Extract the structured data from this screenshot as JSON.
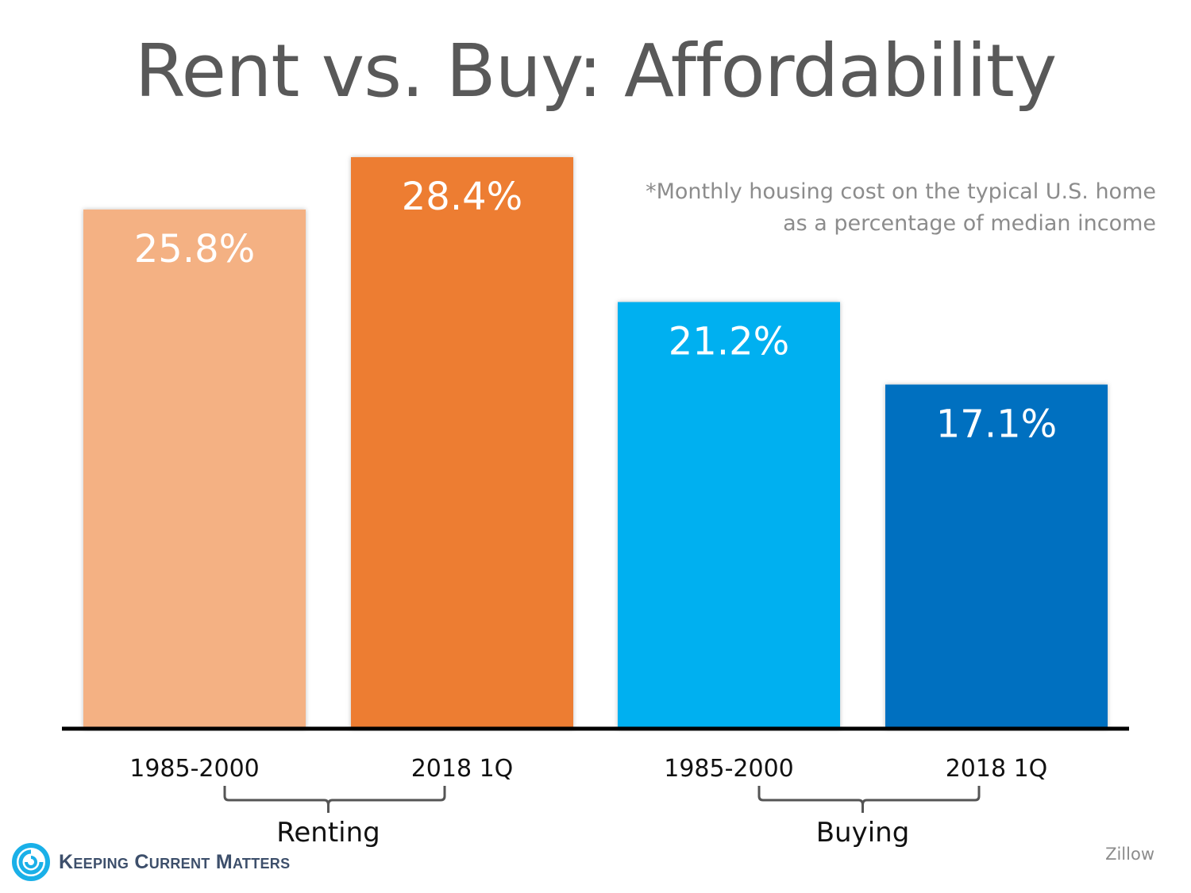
{
  "title": "Rent vs. Buy: Affordability",
  "note_lines": [
    "*Monthly housing cost on the typical U.S. home",
    "as a percentage of median income"
  ],
  "source": "Zillow",
  "logo": {
    "text": "Keeping Current Matters",
    "icon": "swirl-logo-icon",
    "color": "#1ab0e8"
  },
  "chart_data": {
    "type": "bar",
    "title": "Rent vs. Buy: Affordability",
    "categories": [
      "1985-2000",
      "2018 1Q",
      "1985-2000",
      "2018 1Q"
    ],
    "groups": [
      {
        "label": "Renting",
        "indices": [
          0,
          1
        ]
      },
      {
        "label": "Buying",
        "indices": [
          2,
          3
        ]
      }
    ],
    "values": [
      25.8,
      28.4,
      21.2,
      17.1
    ],
    "data_labels": [
      "25.8%",
      "28.4%",
      "21.2%",
      "17.1%"
    ],
    "colors": [
      "#f4b183",
      "#ed7d31",
      "#00b0f0",
      "#0070c0"
    ],
    "ylim": [
      0,
      28.4
    ],
    "grid": false,
    "legend": "none"
  }
}
